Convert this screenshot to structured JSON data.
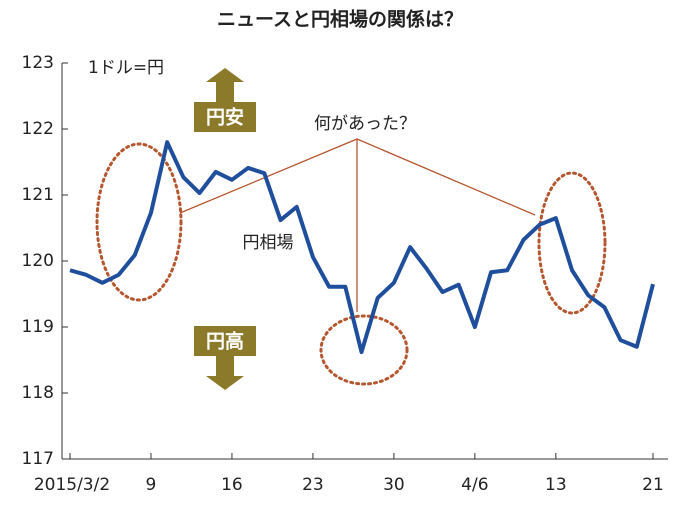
{
  "chart_data": {
    "type": "line",
    "title": "ニュースと円相場の関係は？",
    "unit_label": "1ドル=円",
    "annotations": {
      "up": "円安",
      "down": "円高",
      "question": "何があった？",
      "series_label": "円相場"
    },
    "categories": [
      "2015/3/2",
      null,
      null,
      null,
      null,
      "9",
      null,
      null,
      null,
      null,
      "16",
      null,
      null,
      null,
      null,
      "23",
      null,
      null,
      null,
      null,
      "30",
      null,
      null,
      null,
      null,
      "4/6",
      null,
      null,
      null,
      null,
      "13",
      null,
      null,
      null,
      null,
      null,
      "21"
    ],
    "series": [
      {
        "name": "円相場",
        "color": "#1f4e9c",
        "values": [
          119.86,
          119.79,
          119.67,
          119.79,
          120.09,
          120.73,
          121.8,
          121.27,
          121.03,
          121.35,
          121.23,
          121.41,
          121.33,
          120.62,
          120.82,
          120.06,
          119.61,
          119.61,
          118.62,
          119.44,
          119.67,
          120.21,
          119.89,
          119.53,
          119.64,
          119.0,
          119.83,
          119.86,
          120.32,
          120.55,
          120.65,
          119.86,
          119.48,
          119.3,
          118.8,
          118.7,
          119.65
        ]
      }
    ],
    "ylim": [
      117,
      123
    ],
    "yticks": [
      117,
      118,
      119,
      120,
      121,
      122,
      123
    ]
  }
}
